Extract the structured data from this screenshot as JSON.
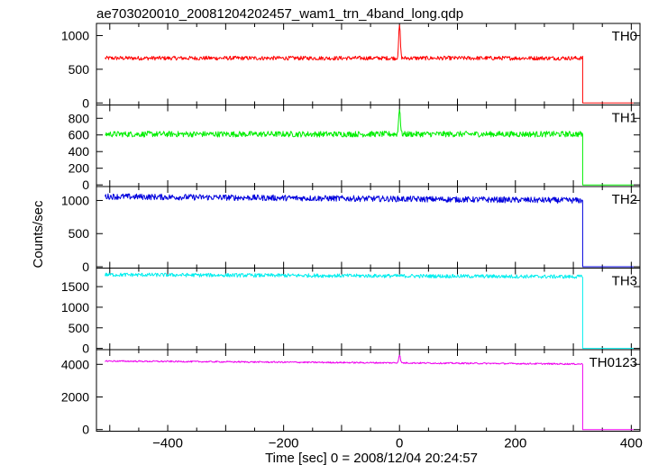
{
  "title": "ae703020010_20081204202457_wam1_trn_4band_long.qdp",
  "chart_data": {
    "type": "line",
    "xlabel": "Time [sec] 0 = 2008/12/04 20:24:57",
    "ylabel": "Counts/sec",
    "xlim": [
      -523,
      415
    ],
    "x_ticks": [
      -400,
      -200,
      0,
      200,
      400
    ],
    "x_tick_labels": [
      "−400",
      "−200",
      "0",
      "200",
      "400"
    ],
    "grid": false,
    "panels": [
      {
        "name": "TH0",
        "color": "#ff0000",
        "ylim": [
          -30,
          1180
        ],
        "yticks": [
          0,
          500,
          1000
        ],
        "ytick_labels": [
          "0",
          "500",
          "1000"
        ],
        "baseline": 665,
        "noise": 30,
        "drop_time": 316,
        "after_value": 0,
        "peak": {
          "x": 0,
          "y": 1150
        }
      },
      {
        "name": "TH1",
        "color": "#00ee00",
        "ylim": [
          -20,
          960
        ],
        "yticks": [
          0,
          200,
          400,
          600,
          800
        ],
        "ytick_labels": [
          "0",
          "200",
          "400",
          "600",
          "800"
        ],
        "baseline": 610,
        "noise": 35,
        "drop_time": 316,
        "after_value": 0,
        "peak": {
          "x": 0,
          "y": 930
        }
      },
      {
        "name": "TH2",
        "color": "#0000dd",
        "ylim": [
          -20,
          1210
        ],
        "yticks": [
          0,
          500,
          1000
        ],
        "ytick_labels": [
          "0",
          "500",
          "1000"
        ],
        "baseline": 1060,
        "baseline_end": 1000,
        "noise": 45,
        "drop_time": 316,
        "after_value": 0
      },
      {
        "name": "TH3",
        "color": "#00eeee",
        "ylim": [
          -30,
          1950
        ],
        "yticks": [
          0,
          500,
          1000,
          1500
        ],
        "ytick_labels": [
          "0",
          "500",
          "1000",
          "1500"
        ],
        "baseline": 1790,
        "baseline_end": 1740,
        "noise": 45,
        "drop_time": 316,
        "after_value": 0
      },
      {
        "name": "TH0123",
        "color": "#ee00ee",
        "ylim": [
          -100,
          4900
        ],
        "yticks": [
          0,
          2000,
          4000
        ],
        "ytick_labels": [
          "0",
          "2000",
          "4000"
        ],
        "baseline": 4200,
        "baseline_end": 4020,
        "noise": 45,
        "drop_time": 316,
        "after_value": 0,
        "peak": {
          "x": 0,
          "y": 4700
        }
      }
    ]
  }
}
